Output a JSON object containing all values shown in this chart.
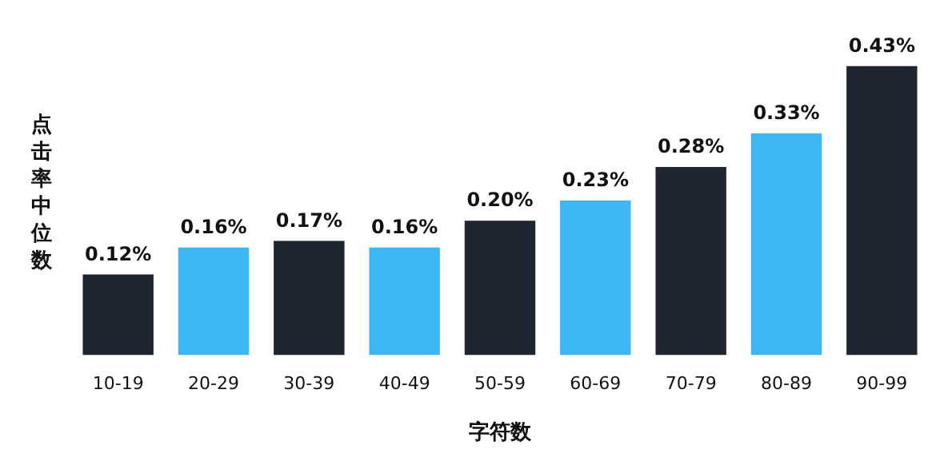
{
  "chart_data": {
    "type": "bar",
    "xlabel": "字符数",
    "ylabel": "点击率中位数",
    "categories": [
      "10-19",
      "20-29",
      "30-39",
      "40-49",
      "50-59",
      "60-69",
      "70-79",
      "80-89",
      "90-99"
    ],
    "values": [
      0.12,
      0.16,
      0.17,
      0.16,
      0.2,
      0.23,
      0.28,
      0.33,
      0.43
    ],
    "colors": [
      "#1f2631",
      "#3db7f3",
      "#1f2631",
      "#3db7f3",
      "#1f2631",
      "#3db7f3",
      "#1f2631",
      "#3db7f3",
      "#1f2631"
    ],
    "value_labels": [
      "0.12%",
      "0.16%",
      "0.17%",
      "0.16%",
      "0.20%",
      "0.23%",
      "0.28%",
      "0.33%",
      "0.43%"
    ],
    "grid": false,
    "legend": false
  }
}
